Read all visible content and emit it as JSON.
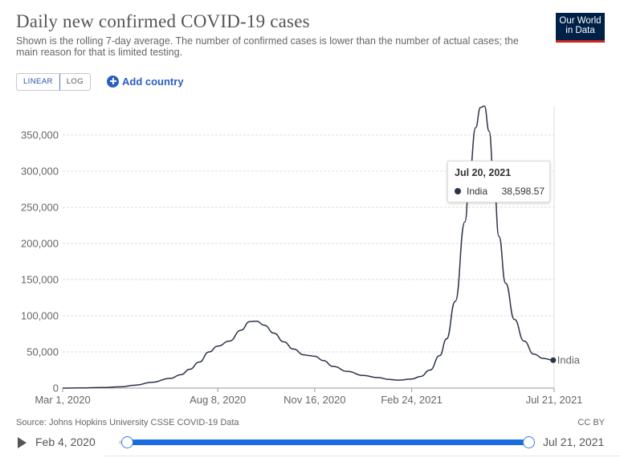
{
  "header": {
    "title": "Daily new confirmed COVID-19 cases",
    "subtitle": "Shown is the rolling 7-day average. The number of confirmed cases is lower than the number of actual cases; the main reason for that is limited testing."
  },
  "logo": {
    "line1": "Our World",
    "line2": "in Data"
  },
  "controls": {
    "linear_label": "LINEAR",
    "log_label": "LOG",
    "add_country_label": "Add country"
  },
  "tooltip": {
    "date": "Jul 20, 2021",
    "entity": "India",
    "value": "38,598.57"
  },
  "footer": {
    "source": "Source: Johns Hopkins University CSSE COVID-19 Data",
    "license": "CC BY"
  },
  "timeline": {
    "start": "Feb 4, 2020",
    "end": "Jul 21, 2021",
    "start_fraction": 0.0,
    "end_fraction": 1.0
  },
  "colors": {
    "line": "#2c3447",
    "accent": "#2a5fbf",
    "logo_bg": "#002147",
    "logo_bar": "#ce261e"
  },
  "chart_data": {
    "type": "line",
    "title": "Daily new confirmed COVID-19 cases",
    "ylim": [
      0,
      390000
    ],
    "y_ticks": [
      0,
      50000,
      100000,
      150000,
      200000,
      250000,
      300000,
      350000
    ],
    "y_tick_labels": [
      "0",
      "50,000",
      "100,000",
      "150,000",
      "200,000",
      "250,000",
      "300,000",
      "350,000"
    ],
    "xlim": [
      "2020-03-01",
      "2021-07-21"
    ],
    "x_ticks": [
      "2020-03-01",
      "2020-08-08",
      "2020-11-16",
      "2021-02-24",
      "2021-07-21"
    ],
    "x_tick_labels": [
      "Mar 1, 2020",
      "Aug 8, 2020",
      "Nov 16, 2020",
      "Feb 24, 2021",
      "Jul 21, 2021"
    ],
    "grid": "horizontal-dashed",
    "series": [
      {
        "name": "India",
        "x": [
          "2020-03-01",
          "2020-03-20",
          "2020-04-10",
          "2020-04-30",
          "2020-05-15",
          "2020-06-01",
          "2020-06-20",
          "2020-07-01",
          "2020-07-10",
          "2020-07-20",
          "2020-07-30",
          "2020-08-08",
          "2020-08-20",
          "2020-09-01",
          "2020-09-10",
          "2020-09-17",
          "2020-09-25",
          "2020-10-05",
          "2020-10-15",
          "2020-10-25",
          "2020-11-05",
          "2020-11-10",
          "2020-11-16",
          "2020-11-25",
          "2020-12-05",
          "2020-12-20",
          "2021-01-05",
          "2021-01-20",
          "2021-02-01",
          "2021-02-10",
          "2021-02-24",
          "2021-03-05",
          "2021-03-15",
          "2021-03-25",
          "2021-04-01",
          "2021-04-10",
          "2021-04-20",
          "2021-04-25",
          "2021-05-01",
          "2021-05-06",
          "2021-05-10",
          "2021-05-15",
          "2021-05-20",
          "2021-05-25",
          "2021-06-01",
          "2021-06-10",
          "2021-06-20",
          "2021-06-30",
          "2021-07-10",
          "2021-07-20"
        ],
        "y": [
          0,
          200,
          800,
          1800,
          4000,
          8000,
          13500,
          18500,
          26000,
          36000,
          50000,
          58000,
          65000,
          80000,
          92000,
          92500,
          87000,
          76000,
          64000,
          54000,
          46000,
          45000,
          44000,
          38000,
          30000,
          23000,
          17500,
          14500,
          12000,
          11000,
          12500,
          16000,
          25000,
          45000,
          68000,
          120000,
          230000,
          300000,
          360000,
          388000,
          390000,
          355000,
          280000,
          210000,
          145000,
          95000,
          65000,
          47000,
          41000,
          38598.57
        ]
      }
    ],
    "end_label": "India"
  }
}
